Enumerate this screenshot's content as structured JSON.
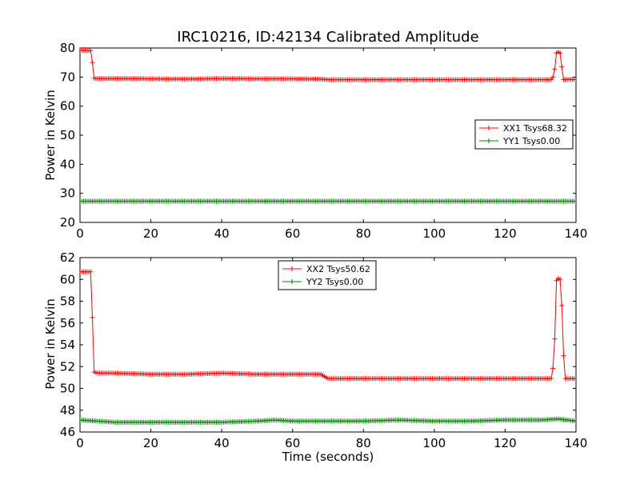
{
  "chart_data": [
    {
      "type": "line",
      "title": "IRC10216, ID:42134 Calibrated Amplitude",
      "xlabel": "",
      "ylabel": "Power in Kelvin",
      "xlim": [
        0,
        140
      ],
      "ylim": [
        20,
        80
      ],
      "xticks": [
        0,
        20,
        40,
        60,
        80,
        100,
        120,
        140
      ],
      "yticks": [
        20,
        30,
        40,
        50,
        60,
        70,
        80
      ],
      "xtick_labels": [
        "0",
        "20",
        "40",
        "60",
        "80",
        "100",
        "120",
        "140"
      ],
      "ytick_labels": [
        "20",
        "30",
        "40",
        "50",
        "60",
        "70",
        "80"
      ],
      "grid": false,
      "legend_position": "center-right",
      "marker": "+",
      "series": [
        {
          "name": "XX1 Tsys68.32",
          "color": "#ff0000",
          "x": [
            0,
            1,
            2,
            3,
            3.5,
            4,
            5,
            10,
            20,
            30,
            40,
            50,
            60,
            68,
            70,
            80,
            90,
            100,
            110,
            120,
            130,
            133,
            133.8,
            134.5,
            135,
            135.5,
            136,
            136.5,
            137,
            138,
            139,
            140
          ],
          "y": [
            79.2,
            79.2,
            79.1,
            79.1,
            75,
            69.6,
            69.5,
            69.5,
            69.4,
            69.3,
            69.5,
            69.4,
            69.4,
            69.3,
            69.1,
            69.1,
            69.1,
            69.1,
            69.1,
            69.1,
            69.1,
            69.1,
            70.5,
            78.3,
            78.6,
            78.3,
            73.5,
            69.2,
            69.1,
            69.2,
            69.2,
            69.2
          ]
        },
        {
          "name": "YY1 Tsys0.00",
          "color": "#008000",
          "x": [
            0,
            20,
            40,
            60,
            80,
            100,
            120,
            140
          ],
          "y": [
            27.3,
            27.3,
            27.3,
            27.3,
            27.3,
            27.3,
            27.3,
            27.3
          ]
        }
      ]
    },
    {
      "type": "line",
      "title": "",
      "xlabel": "Time (seconds)",
      "ylabel": "Power in Kelvin",
      "xlim": [
        0,
        140
      ],
      "ylim": [
        46,
        62
      ],
      "xticks": [
        0,
        20,
        40,
        60,
        80,
        100,
        120,
        140
      ],
      "yticks": [
        46,
        48,
        50,
        52,
        54,
        56,
        58,
        60,
        62
      ],
      "xtick_labels": [
        "0",
        "20",
        "40",
        "60",
        "80",
        "100",
        "120",
        "140"
      ],
      "ytick_labels": [
        "46",
        "48",
        "50",
        "52",
        "54",
        "56",
        "58",
        "60",
        "62"
      ],
      "grid": false,
      "legend_position": "upper-center",
      "marker": "+",
      "series": [
        {
          "name": "XX2 Tsys50.62",
          "color": "#ff0000",
          "x": [
            0,
            1,
            2,
            3,
            3.5,
            4,
            5,
            10,
            20,
            30,
            40,
            50,
            60,
            68,
            70,
            75,
            80,
            90,
            100,
            110,
            120,
            130,
            133,
            133.8,
            134.5,
            135,
            135.5,
            136,
            136.5,
            137,
            138,
            139,
            140
          ],
          "y": [
            60.7,
            60.7,
            60.7,
            60.7,
            56.5,
            51.5,
            51.4,
            51.4,
            51.3,
            51.3,
            51.4,
            51.3,
            51.3,
            51.3,
            50.9,
            50.9,
            50.9,
            50.9,
            50.9,
            50.9,
            50.9,
            50.9,
            50.9,
            52.4,
            59.9,
            60.1,
            60.0,
            57.6,
            53.0,
            50.9,
            50.9,
            50.9,
            50.9
          ]
        },
        {
          "name": "YY2 Tsys0.00",
          "color": "#008000",
          "x": [
            0,
            10,
            20,
            30,
            40,
            50,
            55,
            60,
            70,
            80,
            90,
            100,
            110,
            120,
            130,
            135,
            140
          ],
          "y": [
            47.1,
            46.9,
            46.9,
            46.9,
            46.9,
            47.0,
            47.1,
            47.0,
            47.0,
            47.0,
            47.1,
            47.0,
            47.0,
            47.1,
            47.1,
            47.2,
            47.0
          ]
        }
      ]
    }
  ]
}
